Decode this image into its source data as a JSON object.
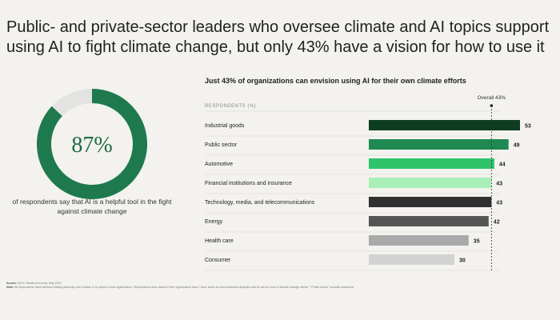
{
  "headline": "Public- and private-sector leaders who oversee climate and AI topics support using AI to fight climate change, but only 43% have a vision for how to use it",
  "donut": {
    "value_label": "87%",
    "fraction": 0.87,
    "caption": "of respondents say that AI is a helpful tool in the fight against climate change",
    "colors": {
      "fill": "#1e7a4e",
      "track": "#e3e4e1"
    }
  },
  "chart_data": {
    "type": "bar",
    "orientation": "horizontal",
    "title": "Just 43% of organizations can envision using AI for their own climate efforts",
    "column_header": "RESPONDENTS (%)",
    "reference_line": {
      "label": "Overall 43%",
      "value": 43
    },
    "categories": [
      "Industrial goods",
      "Public sector",
      "Automotive",
      "Financial institutions and insurance",
      "Technology, media, and telecommunications",
      "Energy",
      "Health care",
      "Consumer"
    ],
    "values": [
      53,
      49,
      44,
      43,
      43,
      42,
      35,
      30
    ],
    "colors": [
      "#0f3d22",
      "#1e8a52",
      "#2fc46a",
      "#a8efb8",
      "#303030",
      "#555555",
      "#a9a9a9",
      "#d2d2d2"
    ],
    "xlim": [
      0,
      55
    ]
  },
  "footer": {
    "source_label": "Source:",
    "source_text": "BCG Climate AI survey, May 2022",
    "note_label": "Note:",
    "note_text": "All respondents have decision-making authority over climate or AI topics in their organization. Respondents were asked if their organization has a \"clear vision for how advanced analytics and AI can be used in climate change efforts.\" \"Public sector\" includes academia."
  }
}
